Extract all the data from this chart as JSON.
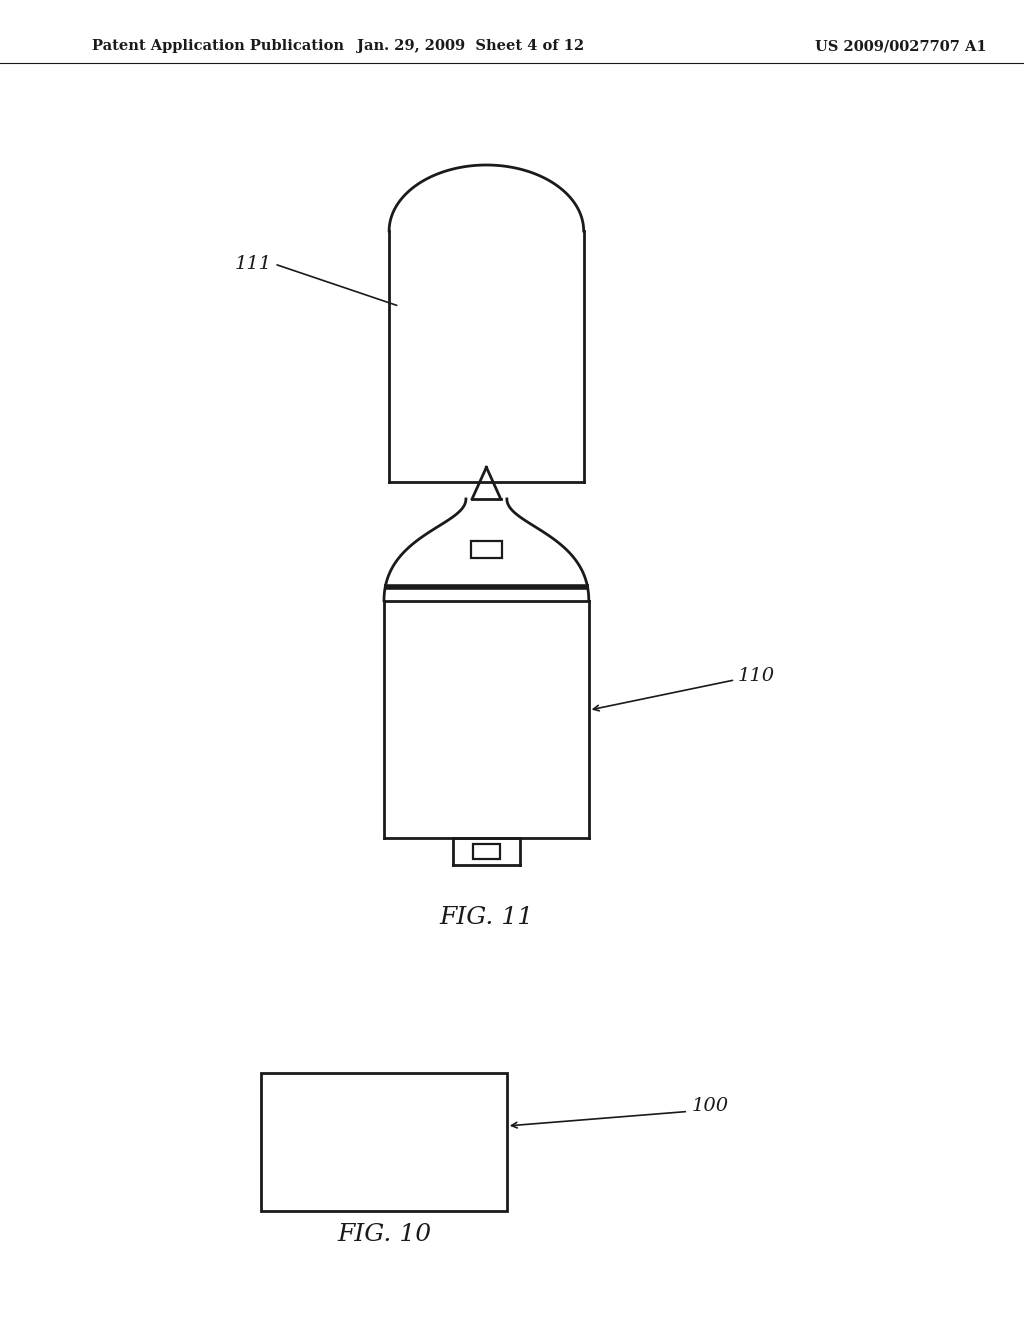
{
  "bg_color": "#ffffff",
  "line_color": "#1a1a1a",
  "line_width": 2.0,
  "header_left": "Patent Application Publication",
  "header_center": "Jan. 29, 2009  Sheet 4 of 12",
  "header_right": "US 2009/0027707 A1",
  "fig11_label": "FIG. 11",
  "fig10_label": "FIG. 10",
  "label_111": "111",
  "label_110": "110",
  "label_100": "100"
}
